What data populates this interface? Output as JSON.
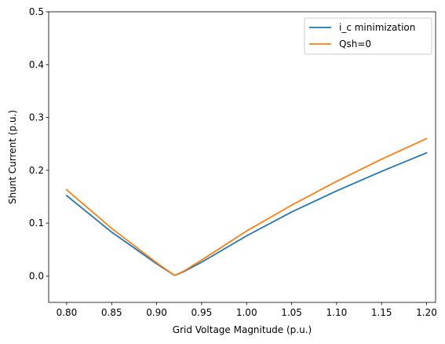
{
  "chart_data": {
    "type": "line",
    "title": "",
    "xlabel": "Grid Voltage Magnitude (p.u.)",
    "ylabel": "Shunt Current (p.u.)",
    "xlim": [
      0.78,
      1.21
    ],
    "ylim": [
      -0.05,
      0.5
    ],
    "x_ticks": [
      "0.80",
      "0.85",
      "0.90",
      "0.95",
      "1.00",
      "1.05",
      "1.10",
      "1.15",
      "1.20"
    ],
    "y_ticks": [
      "0.0",
      "0.1",
      "0.2",
      "0.3",
      "0.4",
      "0.5"
    ],
    "grid": false,
    "legend_position": "top-right",
    "series": [
      {
        "name": "i_c minimization",
        "color": "#1f77b4",
        "x": [
          0.8,
          0.85,
          0.9,
          0.92,
          0.93,
          0.95,
          1.0,
          1.05,
          1.1,
          1.15,
          1.2
        ],
        "y": [
          0.152,
          0.083,
          0.023,
          0.001,
          0.008,
          0.026,
          0.076,
          0.121,
          0.161,
          0.198,
          0.233
        ]
      },
      {
        "name": "Qsh=0",
        "color": "#ff7f0e",
        "x": [
          0.8,
          0.85,
          0.9,
          0.92,
          0.93,
          0.95,
          1.0,
          1.05,
          1.1,
          1.15,
          1.2
        ],
        "y": [
          0.163,
          0.09,
          0.025,
          0.001,
          0.009,
          0.03,
          0.085,
          0.134,
          0.179,
          0.221,
          0.26
        ]
      }
    ]
  }
}
